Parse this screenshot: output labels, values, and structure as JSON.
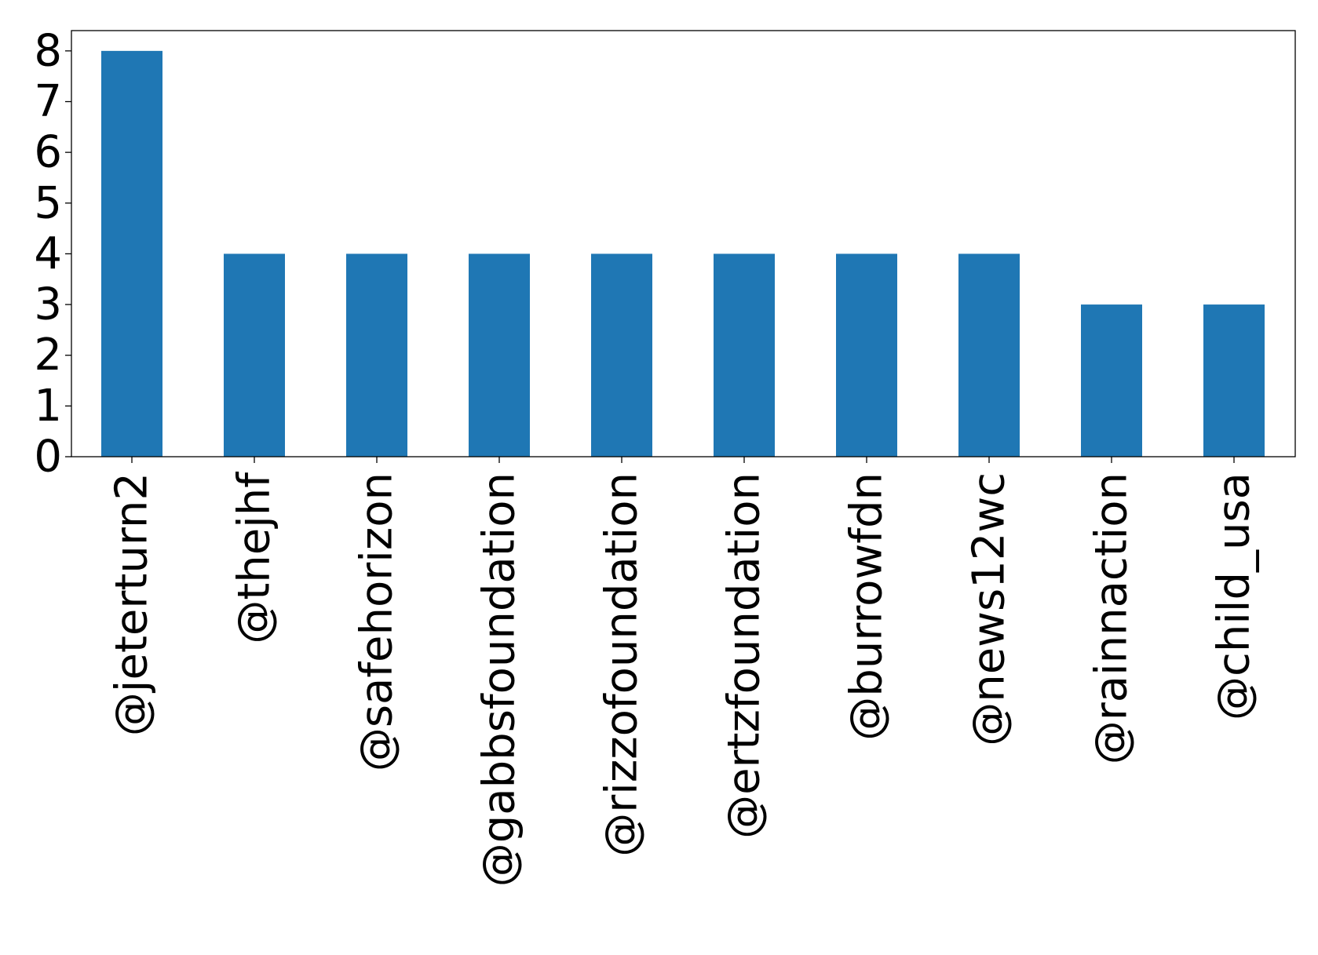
{
  "chart_data": {
    "type": "bar",
    "categories": [
      "@jeterturn2",
      "@thejhf",
      "@safehorizon",
      "@gabbsfoundation",
      "@rizzofoundation",
      "@ertzfoundation",
      "@burrowfdn",
      "@news12wc",
      "@rainnaction",
      "@child_usa"
    ],
    "values": [
      8,
      4,
      4,
      4,
      4,
      4,
      4,
      4,
      3,
      3
    ],
    "yticks": [
      "0",
      "1",
      "2",
      "3",
      "4",
      "5",
      "6",
      "7",
      "8"
    ],
    "ylim": [
      0,
      8.4
    ],
    "title": "",
    "xlabel": "",
    "ylabel": "",
    "grid": false,
    "bar_color": "#1f77b4"
  }
}
